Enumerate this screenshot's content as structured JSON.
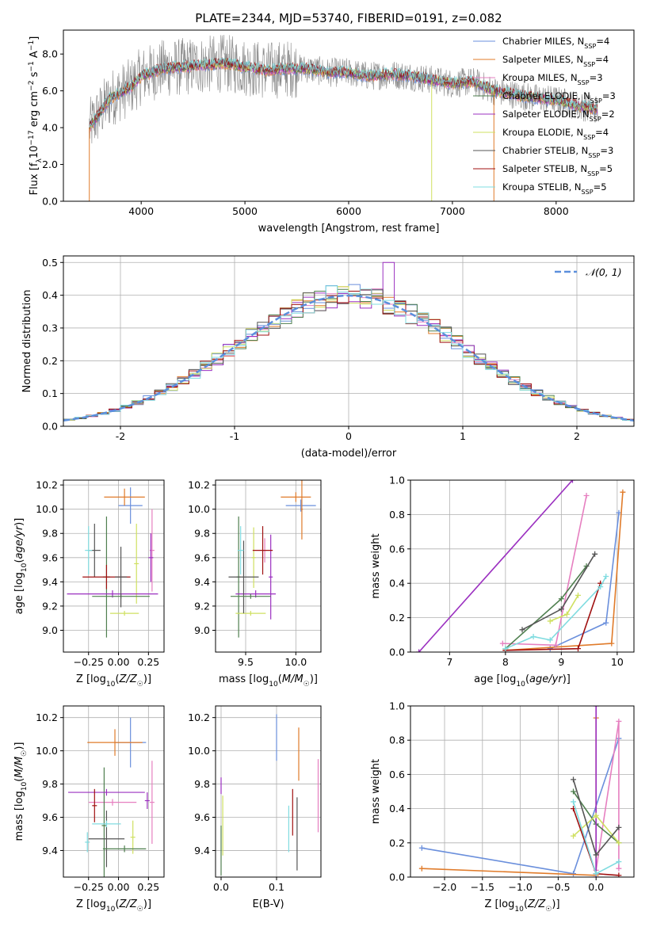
{
  "figure": {
    "title": "PLATE=2344, MJD=53740, FIBERID=0191, z=0.082"
  },
  "colors": {
    "Chabrier MILES": "#6a8fdc",
    "Salpeter MILES": "#e07b2a",
    "Kroupa MILES": "#e67fc0",
    "Chabrier ELODIE": "#4f7f4f",
    "Salpeter ELODIE": "#9b30c0",
    "Kroupa ELODIE": "#cfe060",
    "Chabrier STELIB": "#555555",
    "Salpeter STELIB": "#a01010",
    "Kroupa STELIB": "#80dce0",
    "normal": "#5b8fdc",
    "data": "#888888"
  },
  "chart_data": [
    {
      "id": "spectrum",
      "type": "line",
      "xlabel": "wavelength [Angstrom, rest frame]",
      "ylabel": "Flux [f_λ10^-17 erg cm^-2 s^-1 A^-1]",
      "xlim": [
        3250,
        8750
      ],
      "ylim": [
        0,
        9.3
      ],
      "xticks": [
        4000,
        5000,
        6000,
        7000,
        8000
      ],
      "yticks": [
        0,
        2,
        4,
        6,
        8
      ],
      "grid": false,
      "legend_position": "right",
      "legend": [
        "Chabrier MILES, N_SSP=4",
        "Salpeter MILES, N_SSP=4",
        "Kroupa MILES, N_SSP=3",
        "Chabrier ELODIE, N_SSP=3",
        "Salpeter ELODIE, N_SSP=2",
        "Kroupa ELODIE, N_SSP=4",
        "Chabrier STELIB, N_SSP=3",
        "Salpeter STELIB, N_SSP=5",
        "Kroupa STELIB, N_SSP=5"
      ],
      "continuum": {
        "x": [
          3500,
          3700,
          3900,
          4000,
          4200,
          4400,
          4600,
          4800,
          5000,
          5200,
          5400,
          5600,
          5800,
          6000,
          6200,
          6400,
          6600,
          6800,
          7000,
          7200,
          7400,
          7600,
          7800,
          8000,
          8200,
          8400
        ],
        "y": [
          4.0,
          5.6,
          6.2,
          6.8,
          7.2,
          7.3,
          7.4,
          7.5,
          7.3,
          7.1,
          7.2,
          7.2,
          7.0,
          7.0,
          6.8,
          6.9,
          6.8,
          6.6,
          6.4,
          6.5,
          6.0,
          5.8,
          5.6,
          5.5,
          5.2,
          5.0
        ]
      }
    },
    {
      "id": "residuals",
      "type": "bar",
      "xlabel": "(data-model)/error",
      "ylabel": "Normed distribution",
      "xlim": [
        -2.5,
        2.5
      ],
      "ylim": [
        0,
        0.52
      ],
      "xticks": [
        -2,
        -1,
        0,
        1,
        2
      ],
      "yticks": [
        0.0,
        0.1,
        0.2,
        0.3,
        0.4,
        0.5
      ],
      "grid": true,
      "legend_position": "top-right",
      "legend": [
        "𝒩(0, 1)"
      ],
      "bin_width": 0.1,
      "range": [
        -2.5,
        2.5
      ]
    },
    {
      "id": "age-vs-Z",
      "type": "scatter",
      "xlabel": "Z [log10(Z/Z☉)]",
      "ylabel": "age [log10(age/yr)]",
      "xlim": [
        -0.46,
        0.38
      ],
      "ylim": [
        8.82,
        10.24
      ],
      "xticks": [
        -0.25,
        0.0,
        0.25
      ],
      "xticklabels": [
        "−0.25",
        "0.00",
        "0.25"
      ],
      "yticks": [
        9.0,
        9.2,
        9.4,
        9.6,
        9.8,
        10.0,
        10.2
      ],
      "grid": true,
      "points": [
        {
          "series": "Chabrier MILES",
          "x": 0.1,
          "xerr": 0.1,
          "y": 10.03,
          "yerr": 0.15
        },
        {
          "series": "Salpeter MILES",
          "x": 0.05,
          "xerr": 0.17,
          "y": 10.1,
          "yerr": 0.07
        },
        {
          "series": "Kroupa MILES",
          "x": 0.28,
          "xerr": 0.02,
          "y": 9.66,
          "yerr": 0.34
        },
        {
          "series": "Chabrier ELODIE",
          "x": -0.1,
          "xerr": 0.03,
          "y": 9.44,
          "yerr": 0.5
        },
        {
          "series": "Salpeter ELODIE",
          "x": 0.27,
          "xerr": 0.02,
          "y": 9.6,
          "yerr": 0.2
        },
        {
          "series": "Kroupa ELODIE",
          "x": 0.15,
          "xerr": 0.02,
          "y": 9.55,
          "yerr": 0.33
        },
        {
          "series": "Chabrier STELIB",
          "x": -0.2,
          "xerr": 0.05,
          "y": 9.66,
          "yerr": 0.22
        },
        {
          "series": "Salpeter STELIB",
          "x": -0.1,
          "xerr": 0.2,
          "y": 9.44,
          "yerr": 0.1
        },
        {
          "series": "Kroupa STELIB",
          "x": -0.25,
          "xerr": 0.03,
          "y": 9.66,
          "yerr": 0.2
        },
        {
          "series": "Salpeter ELODIE",
          "x": -0.05,
          "xerr": 0.38,
          "y": 9.3,
          "yerr": 0.03
        },
        {
          "series": "Chabrier ELODIE",
          "x": 0.02,
          "xerr": 0.24,
          "y": 9.28,
          "yerr": 0.02
        },
        {
          "series": "Kroupa ELODIE",
          "x": 0.05,
          "xerr": 0.12,
          "y": 9.14,
          "yerr": 0.02
        },
        {
          "series": "Chabrier STELIB",
          "x": 0.02,
          "xerr": 0.05,
          "y": 9.44,
          "yerr": 0.25
        }
      ]
    },
    {
      "id": "age-vs-mass",
      "type": "scatter",
      "xlabel": "mass [log10(M/M☉)]",
      "ylabel": "",
      "xlim": [
        9.2,
        10.25
      ],
      "ylim": [
        8.82,
        10.24
      ],
      "xticks": [
        9.5,
        10.0
      ],
      "xticklabels": [
        "9.5",
        "10.0"
      ],
      "yticks": [
        9.0,
        9.2,
        9.4,
        9.6,
        9.8,
        10.0,
        10.2
      ],
      "grid": true,
      "points": [
        {
          "series": "Chabrier MILES",
          "x": 10.05,
          "xerr": 0.15,
          "y": 10.03,
          "yerr": 0.05
        },
        {
          "series": "Salpeter MILES",
          "x": 10.0,
          "xerr": 0.15,
          "y": 10.1,
          "yerr": 0.04
        },
        {
          "series": "Salpeter MILES",
          "x": 10.06,
          "xerr": 0.01,
          "y": 10.0,
          "yerr": 0.25
        },
        {
          "series": "Kroupa MILES",
          "x": 9.69,
          "xerr": 0.02,
          "y": 9.66,
          "yerr": 0.1
        },
        {
          "series": "Chabrier ELODIE",
          "x": 9.43,
          "xerr": 0.02,
          "y": 9.44,
          "yerr": 0.5
        },
        {
          "series": "Salpeter ELODIE",
          "x": 9.6,
          "xerr": 0.2,
          "y": 9.3,
          "yerr": 0.03
        },
        {
          "series": "Salpeter ELODIE",
          "x": 9.75,
          "xerr": 0.02,
          "y": 9.44,
          "yerr": 0.35
        },
        {
          "series": "Kroupa ELODIE",
          "x": 9.55,
          "xerr": 0.15,
          "y": 9.14,
          "yerr": 0.02
        },
        {
          "series": "Kroupa ELODIE",
          "x": 9.58,
          "xerr": 0.02,
          "y": 9.6,
          "yerr": 0.25
        },
        {
          "series": "Chabrier STELIB",
          "x": 9.48,
          "xerr": 0.15,
          "y": 9.44,
          "yerr": 0.3
        },
        {
          "series": "Salpeter STELIB",
          "x": 9.67,
          "xerr": 0.1,
          "y": 9.66,
          "yerr": 0.2
        },
        {
          "series": "Kroupa STELIB",
          "x": 9.45,
          "xerr": 0.03,
          "y": 9.66,
          "yerr": 0.2
        },
        {
          "series": "Chabrier ELODIE",
          "x": 9.55,
          "xerr": 0.2,
          "y": 9.28,
          "yerr": 0.02
        }
      ]
    },
    {
      "id": "massweight-vs-age",
      "type": "line",
      "xlabel": "age [log10(age/yr)]",
      "ylabel": "mass weight",
      "xlim": [
        6.3,
        10.3
      ],
      "ylim": [
        0,
        1.0
      ],
      "xticks": [
        7,
        8,
        9,
        10
      ],
      "yticks": [
        0.0,
        0.2,
        0.4,
        0.6,
        0.8,
        1.0
      ],
      "grid": true,
      "series": [
        {
          "series": "Chabrier MILES",
          "x": [
            8.8,
            9.8,
            10.03
          ],
          "y": [
            0.02,
            0.17,
            0.81
          ]
        },
        {
          "series": "Salpeter MILES",
          "x": [
            8.0,
            9.9,
            10.1
          ],
          "y": [
            0.01,
            0.05,
            0.93
          ]
        },
        {
          "series": "Kroupa MILES",
          "x": [
            7.95,
            8.9,
            9.45
          ],
          "y": [
            0.05,
            0.04,
            0.91
          ]
        },
        {
          "series": "Chabrier ELODIE",
          "x": [
            8.0,
            9.0,
            9.45
          ],
          "y": [
            0.02,
            0.31,
            0.5
          ]
        },
        {
          "series": "Salpeter ELODIE",
          "x": [
            6.45,
            9.2
          ],
          "y": [
            0.0,
            1.0
          ]
        },
        {
          "series": "Kroupa ELODIE",
          "x": [
            8.8,
            9.1,
            9.3
          ],
          "y": [
            0.18,
            0.22,
            0.33
          ]
        },
        {
          "series": "Chabrier STELIB",
          "x": [
            8.3,
            9.0,
            9.6
          ],
          "y": [
            0.13,
            0.25,
            0.57
          ]
        },
        {
          "series": "Salpeter STELIB",
          "x": [
            8.0,
            9.3,
            9.7
          ],
          "y": [
            0.01,
            0.02,
            0.4
          ]
        },
        {
          "series": "Kroupa STELIB",
          "x": [
            8.0,
            8.5,
            8.8,
            9.7,
            9.8
          ],
          "y": [
            0.02,
            0.09,
            0.07,
            0.38,
            0.44
          ]
        }
      ]
    },
    {
      "id": "mass-vs-Z",
      "type": "scatter",
      "xlabel": "Z [log10(Z/Z☉)]",
      "ylabel": "mass [log10(M/M☉)]",
      "xlim": [
        -0.46,
        0.38
      ],
      "ylim": [
        9.24,
        10.27
      ],
      "xticks": [
        -0.25,
        0.0,
        0.25
      ],
      "xticklabels": [
        "−0.25",
        "0.00",
        "0.25"
      ],
      "yticks": [
        9.4,
        9.6,
        9.8,
        10.0,
        10.2
      ],
      "grid": true,
      "points": [
        {
          "series": "Chabrier MILES",
          "x": 0.1,
          "xerr": 0.13,
          "y": 10.05,
          "yerr": 0.15
        },
        {
          "series": "Salpeter MILES",
          "x": -0.03,
          "xerr": 0.23,
          "y": 10.05,
          "yerr": 0.08
        },
        {
          "series": "Kroupa MILES",
          "x": 0.28,
          "xerr": 0.02,
          "y": 9.69,
          "yerr": 0.25
        },
        {
          "series": "Kroupa MILES",
          "x": -0.05,
          "xerr": 0.2,
          "y": 9.69,
          "yerr": 0.02
        },
        {
          "series": "Chabrier ELODIE",
          "x": -0.12,
          "xerr": 0.02,
          "y": 9.55,
          "yerr": 0.35
        },
        {
          "series": "Salpeter ELODIE",
          "x": -0.1,
          "xerr": 0.32,
          "y": 9.75,
          "yerr": 0.02
        },
        {
          "series": "Salpeter ELODIE",
          "x": 0.24,
          "xerr": 0.02,
          "y": 9.7,
          "yerr": 0.05
        },
        {
          "series": "Kroupa ELODIE",
          "x": 0.12,
          "xerr": 0.02,
          "y": 9.48,
          "yerr": 0.1
        },
        {
          "series": "Chabrier STELIB",
          "x": -0.1,
          "xerr": 0.15,
          "y": 9.47,
          "yerr": 0.17
        },
        {
          "series": "Salpeter STELIB",
          "x": -0.2,
          "xerr": 0.02,
          "y": 9.67,
          "yerr": 0.1
        },
        {
          "series": "Kroupa STELIB",
          "x": -0.1,
          "xerr": 0.12,
          "y": 9.56,
          "yerr": 0.02
        },
        {
          "series": "Chabrier ELODIE",
          "x": 0.05,
          "xerr": 0.18,
          "y": 9.41,
          "yerr": 0.02
        },
        {
          "series": "Kroupa STELIB",
          "x": -0.26,
          "xerr": 0.02,
          "y": 9.45,
          "yerr": 0.06
        }
      ]
    },
    {
      "id": "mass-vs-EBV",
      "type": "scatter",
      "xlabel": "E(B-V)",
      "ylabel": "",
      "xlim": [
        -0.01,
        0.18
      ],
      "ylim": [
        9.24,
        10.27
      ],
      "xticks": [
        0.0,
        0.1
      ],
      "xticklabels": [
        "0.0",
        "0.1"
      ],
      "yticks": [
        9.4,
        9.6,
        9.8,
        10.0,
        10.2
      ],
      "grid": true,
      "points": [
        {
          "series": "Chabrier MILES",
          "x": 0.1,
          "xerr": 0.0,
          "y": 10.08,
          "yerr": 0.14
        },
        {
          "series": "Salpeter MILES",
          "x": 0.14,
          "xerr": 0.0,
          "y": 9.98,
          "yerr": 0.16
        },
        {
          "series": "Kroupa MILES",
          "x": 0.175,
          "xerr": 0.0,
          "y": 9.73,
          "yerr": 0.22
        },
        {
          "series": "Chabrier ELODIE",
          "x": 0.0,
          "xerr": 0.0,
          "y": 9.4,
          "yerr": 0.15
        },
        {
          "series": "Salpeter ELODIE",
          "x": 0.0,
          "xerr": 0.0,
          "y": 9.79,
          "yerr": 0.05
        },
        {
          "series": "Kroupa ELODIE",
          "x": 0.003,
          "xerr": 0.0,
          "y": 9.55,
          "yerr": 0.18
        },
        {
          "series": "Chabrier STELIB",
          "x": 0.137,
          "xerr": 0.0,
          "y": 9.5,
          "yerr": 0.22
        },
        {
          "series": "Salpeter STELIB",
          "x": 0.129,
          "xerr": 0.0,
          "y": 9.63,
          "yerr": 0.14
        },
        {
          "series": "Kroupa STELIB",
          "x": 0.122,
          "xerr": 0.0,
          "y": 9.53,
          "yerr": 0.14
        }
      ]
    },
    {
      "id": "massweight-vs-Z",
      "type": "line",
      "xlabel": "Z [log10(Z/Z☉)]",
      "ylabel": "mass weight",
      "xlim": [
        -2.45,
        0.5
      ],
      "ylim": [
        0,
        1.0
      ],
      "xticks": [
        -2.0,
        -1.5,
        -1.0,
        -0.5,
        0.0
      ],
      "xticklabels": [
        "−2.0",
        "−1.5",
        "−1.0",
        "−0.5",
        "0.0"
      ],
      "yticks": [
        0.0,
        0.2,
        0.4,
        0.6,
        0.8,
        1.0
      ],
      "grid": true,
      "series": [
        {
          "series": "Chabrier MILES",
          "x": [
            -2.3,
            -0.3,
            0.3
          ],
          "y": [
            0.17,
            0.02,
            0.81
          ]
        },
        {
          "series": "Salpeter MILES",
          "x": [
            -2.3,
            0.0,
            0.0
          ],
          "y": [
            0.05,
            0.01,
            0.93
          ]
        },
        {
          "series": "Kroupa MILES",
          "x": [
            0.0,
            0.3,
            0.3
          ],
          "y": [
            0.04,
            0.91,
            0.05
          ]
        },
        {
          "series": "Chabrier ELODIE",
          "x": [
            -0.3,
            0.0,
            0.3
          ],
          "y": [
            0.5,
            0.31,
            0.2
          ]
        },
        {
          "series": "Salpeter ELODIE",
          "x": [
            0.0,
            0.0
          ],
          "y": [
            0.0,
            1.0
          ]
        },
        {
          "series": "Kroupa ELODIE",
          "x": [
            -0.3,
            0.0,
            0.3
          ],
          "y": [
            0.24,
            0.36,
            0.2
          ]
        },
        {
          "series": "Chabrier STELIB",
          "x": [
            -0.3,
            0.0,
            0.3
          ],
          "y": [
            0.57,
            0.13,
            0.29
          ]
        },
        {
          "series": "Salpeter STELIB",
          "x": [
            -0.3,
            0.0,
            0.3
          ],
          "y": [
            0.4,
            0.02,
            0.01
          ]
        },
        {
          "series": "Kroupa STELIB",
          "x": [
            -0.3,
            0.0,
            0.3
          ],
          "y": [
            0.44,
            0.02,
            0.09
          ]
        }
      ]
    }
  ]
}
